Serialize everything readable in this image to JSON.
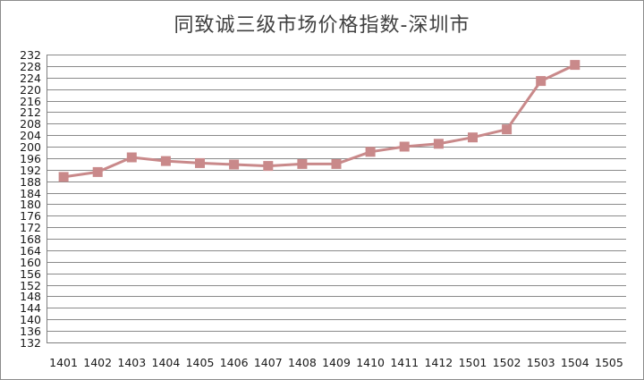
{
  "chart_data": {
    "type": "line",
    "title": "同致诚三级市场价格指数-深圳市",
    "xlabel": "",
    "ylabel": "",
    "categories": [
      "1401",
      "1402",
      "1403",
      "1404",
      "1405",
      "1406",
      "1407",
      "1408",
      "1409",
      "1410",
      "1411",
      "1412",
      "1501",
      "1502",
      "1503",
      "1504",
      "1505"
    ],
    "series": [
      {
        "values": [
          189.5,
          191.2,
          196.3,
          195.0,
          194.3,
          193.8,
          193.3,
          194.0,
          194.0,
          198.2,
          200.0,
          201.0,
          203.2,
          206.0,
          222.8,
          228.4,
          null
        ]
      }
    ],
    "ylim": [
      132,
      232
    ],
    "ytick_step": 4,
    "grid": true,
    "legend": "none",
    "colors": {
      "series": "#c9898a",
      "grid": "#8a8a8a",
      "axis": "#7f7f7f",
      "text": "#1a1a1a",
      "title": "#404040"
    }
  }
}
